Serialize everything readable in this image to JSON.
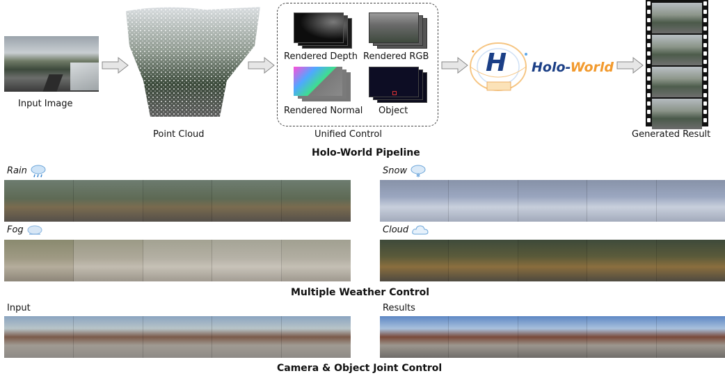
{
  "pipeline": {
    "input_label": "Input Image",
    "pointcloud_label": "Point Cloud",
    "unified_label": "Unified Control",
    "depth_label": "Rendered Depth",
    "rgb_label": "Rendered RGB",
    "normal_label": "Rendered Normal",
    "object_label": "Object",
    "logo_letter": "H",
    "logo_text_a": "Holo-",
    "logo_text_b": "World",
    "result_label": "Generated Result",
    "section_title": "Holo-World Pipeline"
  },
  "weather": {
    "rain_label": "Rain",
    "snow_label": "Snow",
    "fog_label": "Fog",
    "cloud_label": "Cloud",
    "section_title": "Multiple Weather Control"
  },
  "joint": {
    "input_label": "Input",
    "results_label": "Results",
    "section_title": "Camera & Object Joint Control"
  },
  "colors": {
    "logo_blue": "#1b3f86",
    "logo_orange": "#f29a2e"
  }
}
